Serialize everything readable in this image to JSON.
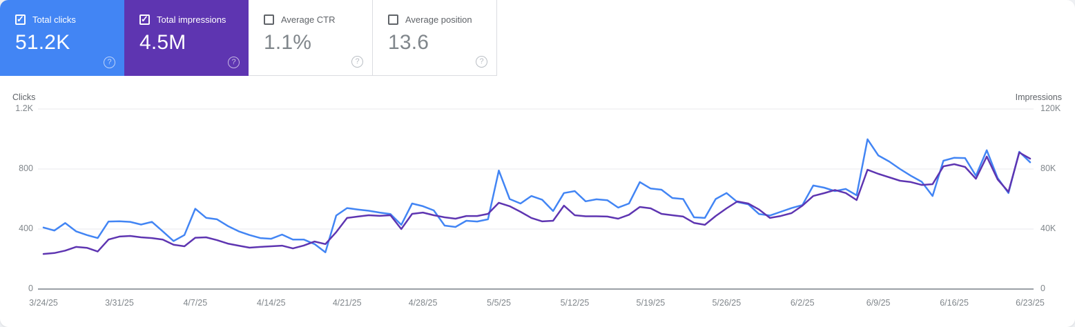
{
  "cards": [
    {
      "label": "Total clicks",
      "value": "51.2K",
      "checked": true,
      "color": "#4285f4"
    },
    {
      "label": "Total impressions",
      "value": "4.5M",
      "checked": true,
      "color": "#5e35b1"
    },
    {
      "label": "Average CTR",
      "value": "1.1%",
      "checked": false,
      "color": "#ffffff"
    },
    {
      "label": "Average position",
      "value": "13.6",
      "checked": false,
      "color": "#ffffff"
    }
  ],
  "chart_data": {
    "type": "line",
    "start_date": "3/24/25",
    "end_date": "6/23/25",
    "x_labels": [
      "3/24/25",
      "3/31/25",
      "4/7/25",
      "4/14/25",
      "4/21/25",
      "4/28/25",
      "5/5/25",
      "5/12/25",
      "5/19/25",
      "5/26/25",
      "6/2/25",
      "6/9/25",
      "6/16/25",
      "6/23/25"
    ],
    "left_axis": {
      "title": "Clicks",
      "ticks": [
        "1.2K",
        "800",
        "400",
        "0"
      ],
      "max": 1200
    },
    "right_axis": {
      "title": "Impressions",
      "ticks": [
        "120K",
        "80K",
        "40K",
        "0"
      ],
      "max": 120000
    },
    "grid": true,
    "legend": "none",
    "series": [
      {
        "name": "Clicks",
        "axis": "left",
        "color": "#4285f4",
        "values": [
          410,
          390,
          440,
          385,
          360,
          340,
          450,
          452,
          448,
          430,
          448,
          385,
          320,
          360,
          535,
          475,
          465,
          420,
          385,
          360,
          340,
          335,
          363,
          330,
          330,
          300,
          245,
          490,
          540,
          530,
          522,
          510,
          500,
          428,
          570,
          552,
          524,
          423,
          414,
          455,
          450,
          465,
          790,
          600,
          570,
          620,
          595,
          520,
          640,
          653,
          585,
          598,
          592,
          543,
          570,
          713,
          670,
          662,
          607,
          600,
          478,
          474,
          600,
          640,
          580,
          565,
          500,
          490,
          515,
          540,
          560,
          690,
          676,
          653,
          667,
          625,
          998,
          890,
          850,
          800,
          755,
          715,
          620,
          855,
          875,
          873,
          755,
          925,
          740,
          640,
          915,
          845
        ]
      },
      {
        "name": "Impressions",
        "axis": "right",
        "color": "#5e35b1",
        "values": [
          23400,
          24000,
          25600,
          28100,
          27500,
          25000,
          33000,
          35000,
          35400,
          34500,
          34000,
          33000,
          29500,
          28500,
          34200,
          34500,
          32600,
          30300,
          28900,
          27600,
          28100,
          28500,
          28900,
          27100,
          29000,
          31700,
          30000,
          38000,
          47400,
          48300,
          49200,
          48800,
          49200,
          40000,
          50100,
          51000,
          49200,
          47800,
          46900,
          48700,
          48700,
          50100,
          57500,
          55200,
          51500,
          47400,
          45100,
          45500,
          55600,
          49200,
          48500,
          48500,
          48300,
          46900,
          49500,
          54700,
          53800,
          50100,
          49200,
          48300,
          44100,
          42800,
          48700,
          53800,
          58400,
          57000,
          53000,
          47400,
          48700,
          50600,
          55600,
          62000,
          63900,
          66000,
          64000,
          59300,
          79500,
          76800,
          74500,
          72200,
          71300,
          69400,
          69900,
          81800,
          83200,
          81400,
          73500,
          88300,
          73100,
          64800,
          91000,
          86900
        ]
      }
    ]
  },
  "colors": {
    "clicks_blue": "#4285f4",
    "impressions_purple": "#5e35b1",
    "gridline": "#e8eaed",
    "baseline": "#9aa0a6",
    "tick_text": "#80868b",
    "card_border": "#dadce0"
  }
}
